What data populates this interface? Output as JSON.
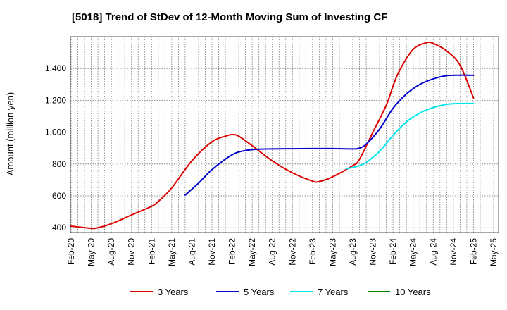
{
  "chart_data": {
    "type": "line",
    "title": "[5018]  Trend of StDev of 12-Month Moving Sum of Investing CF",
    "ylabel": "Amount (million yen)",
    "xlabel": "",
    "ylim": [
      370,
      1600
    ],
    "yticks": [
      400,
      600,
      800,
      1000,
      1200,
      1400
    ],
    "ytick_labels": [
      "400",
      "600",
      "800",
      "1,000",
      "1,200",
      "1,400"
    ],
    "x_start": "Feb-20",
    "x_ticks": [
      "Feb-20",
      "May-20",
      "Aug-20",
      "Nov-20",
      "Feb-21",
      "May-21",
      "Aug-21",
      "Nov-21",
      "Feb-22",
      "May-22",
      "Aug-22",
      "Nov-22",
      "Feb-23",
      "May-23",
      "Aug-23",
      "Nov-23",
      "Feb-24",
      "May-24",
      "Aug-24",
      "Nov-24",
      "Feb-25",
      "May-25"
    ],
    "grid": true,
    "legend_position": "bottom",
    "series": [
      {
        "name": "3 Years",
        "color": "#dd0000",
        "points": [
          [
            "Feb-20",
            410
          ],
          [
            "May-20",
            396
          ],
          [
            "Jun-20",
            400
          ],
          [
            "Aug-20",
            425
          ],
          [
            "Nov-20",
            480
          ],
          [
            "Feb-21",
            535
          ],
          [
            "Mar-21",
            565
          ],
          [
            "May-21",
            650
          ],
          [
            "Aug-21",
            820
          ],
          [
            "Nov-21",
            940
          ],
          [
            "Jan-22",
            975
          ],
          [
            "Feb-22",
            985
          ],
          [
            "Mar-22",
            975
          ],
          [
            "May-22",
            915
          ],
          [
            "Aug-22",
            820
          ],
          [
            "Nov-22",
            745
          ],
          [
            "Feb-23",
            693
          ],
          [
            "Mar-23",
            690
          ],
          [
            "May-23",
            720
          ],
          [
            "Aug-23",
            790
          ],
          [
            "Sep-23",
            830
          ],
          [
            "Nov-23",
            1000
          ],
          [
            "Jan-24",
            1170
          ],
          [
            "Feb-24",
            1290
          ],
          [
            "Mar-24",
            1390
          ],
          [
            "May-24",
            1520
          ],
          [
            "Jul-24",
            1562
          ],
          [
            "Aug-24",
            1557
          ],
          [
            "Oct-24",
            1510
          ],
          [
            "Dec-24",
            1420
          ],
          [
            "Feb-25",
            1215
          ]
        ]
      },
      {
        "name": "5 Years",
        "color": "#0000cc",
        "points": [
          [
            "Jul-21",
            605
          ],
          [
            "Sep-21",
            680
          ],
          [
            "Nov-21",
            765
          ],
          [
            "Feb-22",
            858
          ],
          [
            "Apr-22",
            885
          ],
          [
            "Jun-22",
            893
          ],
          [
            "Aug-22",
            895
          ],
          [
            "Nov-22",
            896
          ],
          [
            "Feb-23",
            897
          ],
          [
            "May-23",
            897
          ],
          [
            "Aug-23",
            895
          ],
          [
            "Sep-23",
            900
          ],
          [
            "Oct-23",
            925
          ],
          [
            "Dec-23",
            1020
          ],
          [
            "Feb-24",
            1150
          ],
          [
            "Apr-24",
            1240
          ],
          [
            "Jun-24",
            1300
          ],
          [
            "Aug-24",
            1335
          ],
          [
            "Oct-24",
            1355
          ],
          [
            "Dec-24",
            1358
          ],
          [
            "Feb-25",
            1357
          ]
        ]
      },
      {
        "name": "7 Years",
        "color": "#00e5ee",
        "points": [
          [
            "Jul-23",
            770
          ],
          [
            "Aug-23",
            778
          ],
          [
            "Sep-23",
            790
          ],
          [
            "Oct-23",
            810
          ],
          [
            "Dec-23",
            880
          ],
          [
            "Feb-24",
            980
          ],
          [
            "Apr-24",
            1065
          ],
          [
            "Jun-24",
            1120
          ],
          [
            "Aug-24",
            1155
          ],
          [
            "Oct-24",
            1175
          ],
          [
            "Dec-24",
            1180
          ],
          [
            "Feb-25",
            1180
          ]
        ]
      },
      {
        "name": "10 Years",
        "color": "#008000",
        "points": []
      }
    ]
  }
}
